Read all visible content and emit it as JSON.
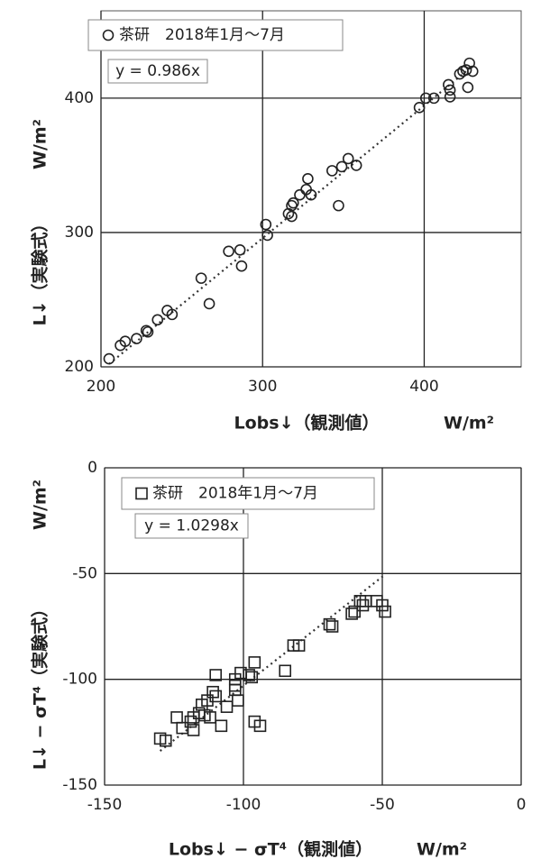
{
  "chart_data": [
    {
      "type": "scatter",
      "legend_label": "茶研　2018年1月～7月",
      "equation": {
        "slope": 0.986,
        "label": "y = 0.986x"
      },
      "ylabel": "L↓（実験式）",
      "ylabel_unit": "W/m²",
      "xlabel": "Lobs↓（観測値）",
      "xlabel_unit": "W/m²",
      "marker": "circle",
      "color": "#222222",
      "grid": true,
      "xlim": [
        200,
        460
      ],
      "ylim": [
        200,
        465
      ],
      "xticks": [
        200,
        300,
        400
      ],
      "yticks": [
        200,
        300,
        400
      ],
      "x": [
        205,
        212,
        215,
        222,
        228,
        229,
        235,
        241,
        244,
        262,
        267,
        279,
        286,
        287,
        302,
        303,
        316,
        318,
        319,
        318,
        323,
        327,
        328,
        330,
        343,
        347,
        349,
        353,
        358,
        397,
        401,
        406,
        415,
        416,
        416,
        422,
        424,
        426,
        427,
        428,
        430
      ],
      "values": [
        206,
        216,
        219,
        221,
        227,
        226,
        235,
        242,
        239,
        266,
        247,
        286,
        287,
        275,
        306,
        298,
        314,
        320,
        322,
        312,
        328,
        332,
        340,
        328,
        346,
        320,
        349,
        355,
        350,
        393,
        400,
        400,
        410,
        401,
        406,
        418,
        420,
        421,
        408,
        426,
        420
      ]
    },
    {
      "type": "scatter",
      "legend_label": "茶研　2018年1月～7月",
      "equation": {
        "slope": 1.0298,
        "label": "y = 1.0298x"
      },
      "ylabel": "L↓ − σT⁴（実験式）",
      "ylabel_unit": "W/m²",
      "xlabel": "Lobs↓ − σT⁴（観測値）",
      "xlabel_unit": "W/m²",
      "marker": "square",
      "color": "#222222",
      "grid": true,
      "xlim": [
        -150,
        0
      ],
      "ylim": [
        -150,
        0
      ],
      "xticks": [
        -150,
        -100,
        -50,
        0
      ],
      "yticks": [
        -150,
        -100,
        -50,
        0
      ],
      "x": [
        -130,
        -128,
        -124,
        -122,
        -119,
        -118,
        -118,
        -116,
        -115,
        -114,
        -113,
        -112,
        -111,
        -110,
        -110,
        -108,
        -106,
        -103,
        -103,
        -103,
        -102,
        -101,
        -98,
        -97,
        -96,
        -96,
        -94,
        -85,
        -82,
        -80,
        -69,
        -68,
        -61,
        -60,
        -58,
        -57,
        -56,
        -52,
        -50,
        -49
      ],
      "values": [
        -128,
        -129,
        -118,
        -123,
        -120,
        -124,
        -118,
        -116,
        -112,
        -117,
        -110,
        -118,
        -106,
        -108,
        -98,
        -122,
        -113,
        -100,
        -103,
        -105,
        -110,
        -97,
        -98,
        -99,
        -92,
        -120,
        -122,
        -96,
        -84,
        -84,
        -74,
        -75,
        -69,
        -68,
        -63,
        -65,
        -63,
        -63,
        -65,
        -68
      ]
    }
  ]
}
